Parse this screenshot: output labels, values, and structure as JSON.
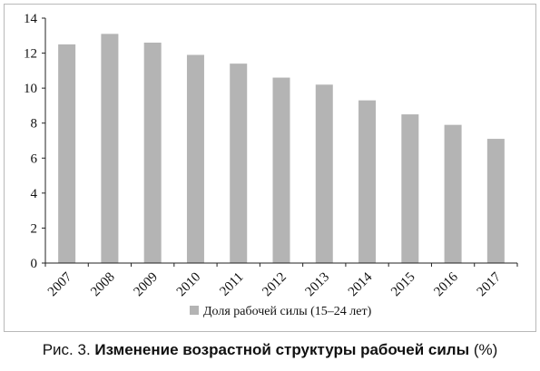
{
  "chart_data": {
    "type": "bar",
    "categories": [
      "2007",
      "2008",
      "2009",
      "2010",
      "2011",
      "2012",
      "2013",
      "2014",
      "2015",
      "2016",
      "2017"
    ],
    "series": [
      {
        "name": "Доля рабочей силы (15–24 лет)",
        "values": [
          12.5,
          13.1,
          12.6,
          11.9,
          11.4,
          10.6,
          10.2,
          9.3,
          8.5,
          7.9,
          7.1
        ]
      }
    ],
    "title": "",
    "xlabel": "",
    "ylabel": "",
    "ylim": [
      0,
      14
    ],
    "yticks": [
      0,
      2,
      4,
      6,
      8,
      10,
      12,
      14
    ],
    "grid": false,
    "legend_position": "bottom",
    "bar_color": "#b4b4b4"
  },
  "caption": {
    "prefix": "Рис. 3. ",
    "title": "Изменение возрастной структуры рабочей силы",
    "suffix": " (%)"
  }
}
